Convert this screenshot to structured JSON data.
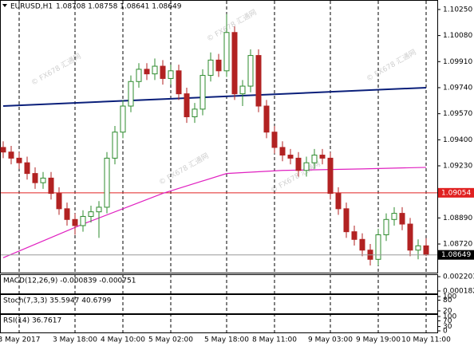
{
  "header": {
    "symbol": "EURUSD,H1",
    "quote": "1.08708 1.08758 1.08641 1.08649"
  },
  "watermark": "© FX678 汇通网",
  "chart_data": {
    "type": "candlestick",
    "categories": [
      null,
      null,
      "3 May 2017",
      null,
      null,
      null,
      null,
      null,
      null,
      "3 May 18:00",
      null,
      null,
      null,
      null,
      null,
      "4 May 10:00",
      null,
      null,
      null,
      null,
      null,
      "5 May 02:00",
      null,
      null,
      null,
      null,
      null,
      null,
      "5 May 18:00",
      null,
      null,
      null,
      null,
      null,
      "8 May 11:00",
      null,
      null,
      null,
      null,
      null,
      null,
      "9 May 03:00",
      null,
      null,
      null,
      null,
      null,
      "9 May 19:00",
      null,
      null,
      null,
      null,
      null,
      "10 May 11:00"
    ],
    "open": [
      1.0935,
      1.0932,
      1.0928,
      1.0925,
      1.0918,
      1.0912,
      1.0915,
      1.0905,
      1.0895,
      1.0888,
      1.0884,
      1.089,
      1.0893,
      1.0896,
      1.0928,
      1.0945,
      1.0962,
      1.0978,
      1.0986,
      1.0983,
      1.0988,
      1.098,
      1.0985,
      1.097,
      1.0955,
      1.096,
      1.0982,
      1.0992,
      1.0985,
      1.101,
      1.097,
      1.0975,
      1.0995,
      1.0962,
      1.0945,
      1.0935,
      1.093,
      1.0928,
      1.092,
      1.0925,
      1.093,
      1.0928,
      1.0905,
      1.0895,
      1.088,
      1.0875,
      1.0868,
      1.0862,
      1.0878,
      1.0888,
      1.0892,
      1.0885,
      1.0868,
      1.08708
    ],
    "high": [
      1.0939,
      1.0936,
      1.0932,
      1.0929,
      1.0922,
      1.0919,
      1.0919,
      1.0909,
      1.0899,
      1.0892,
      1.0894,
      1.0897,
      1.09,
      1.0932,
      1.0949,
      1.0966,
      1.0982,
      1.099,
      1.099,
      1.0993,
      1.0992,
      1.0989,
      1.0989,
      1.0974,
      1.0964,
      1.0986,
      1.0997,
      1.0996,
      1.1022,
      1.1014,
      1.0979,
      1.0999,
      1.0999,
      1.0966,
      1.0949,
      1.0939,
      1.0934,
      1.0932,
      1.0929,
      1.0934,
      1.0934,
      1.0932,
      1.0909,
      1.0899,
      1.0884,
      1.0879,
      1.0872,
      1.0882,
      1.0892,
      1.0896,
      1.0896,
      1.0889,
      1.0875,
      1.08758
    ],
    "low": [
      1.0928,
      1.0924,
      1.0921,
      1.0914,
      1.0908,
      1.0908,
      1.0901,
      1.0891,
      1.0884,
      1.0878,
      1.088,
      1.0886,
      1.0876,
      1.0892,
      1.0924,
      1.0941,
      1.0958,
      1.0974,
      1.0979,
      1.0979,
      1.0976,
      1.0976,
      1.0966,
      1.0951,
      1.0951,
      1.0956,
      1.0978,
      1.0981,
      1.0981,
      1.0966,
      1.0962,
      1.0971,
      1.0958,
      1.0941,
      1.0931,
      1.0926,
      1.0924,
      1.0916,
      1.0916,
      1.0921,
      1.0924,
      1.0901,
      1.0891,
      1.0876,
      1.0871,
      1.0864,
      1.0858,
      1.0858,
      1.0874,
      1.0884,
      1.0881,
      1.0864,
      1.0862,
      1.08641
    ],
    "close": [
      1.0932,
      1.0928,
      1.0925,
      1.0918,
      1.0912,
      1.0915,
      1.0905,
      1.0895,
      1.0888,
      1.0884,
      1.089,
      1.0893,
      1.0896,
      1.0928,
      1.0945,
      1.0962,
      1.0978,
      1.0986,
      1.0983,
      1.0988,
      1.098,
      1.0985,
      1.097,
      1.0955,
      1.096,
      1.0982,
      1.0992,
      1.0985,
      1.101,
      1.097,
      1.0975,
      1.0995,
      1.0962,
      1.0945,
      1.0935,
      1.093,
      1.0928,
      1.092,
      1.0925,
      1.093,
      1.0928,
      1.0905,
      1.0895,
      1.088,
      1.0875,
      1.0868,
      1.0862,
      1.0878,
      1.0888,
      1.0892,
      1.0885,
      1.0868,
      1.08708,
      1.08649
    ],
    "bull_color": "#2e8b2e",
    "bear_color": "#b22222",
    "ylim": [
      1.08533,
      1.10312
    ],
    "yticks": [
      {
        "value": 1.1025,
        "label": "1.10250"
      },
      {
        "value": 1.1008,
        "label": "1.10080"
      },
      {
        "value": 1.0991,
        "label": "1.09910"
      },
      {
        "value": 1.0974,
        "label": "1.09740"
      },
      {
        "value": 1.0957,
        "label": "1.09570"
      },
      {
        "value": 1.094,
        "label": "1.09400"
      },
      {
        "value": 1.0923,
        "label": "1.09230"
      },
      {
        "value": 1.0889,
        "label": "1.08890"
      },
      {
        "value": 1.0872,
        "label": "1.08720"
      }
    ],
    "level_line": {
      "value": 1.09054,
      "color": "#e02020"
    },
    "last_price": {
      "value": 1.08649,
      "label": "1.08649"
    },
    "long_ma": {
      "x": [
        0,
        53
      ],
      "values": [
        1.0962,
        1.0974
      ],
      "color": "#0a1f7a"
    },
    "mid_ma": {
      "x": [
        0,
        10,
        20,
        28,
        35,
        45,
        53
      ],
      "values": [
        1.0863,
        1.0885,
        1.0905,
        1.0918,
        1.092,
        1.0921,
        1.0922
      ],
      "color": "#e020c0"
    }
  },
  "panels": [
    {
      "label": "MACD(12,26,9) -0.000839 -0.000751",
      "ticks": [
        {
          "value": 0.002203,
          "label": "0.002203"
        },
        {
          "value": 0.000182,
          "label": "0.000182"
        }
      ]
    },
    {
      "label": "Stoch(7,3,3) 35.5947 40.6799",
      "ticks": [
        100,
        80,
        20
      ]
    },
    {
      "label": "RSI(14) 36.7617",
      "ticks": [
        100,
        70,
        30,
        0
      ]
    }
  ]
}
